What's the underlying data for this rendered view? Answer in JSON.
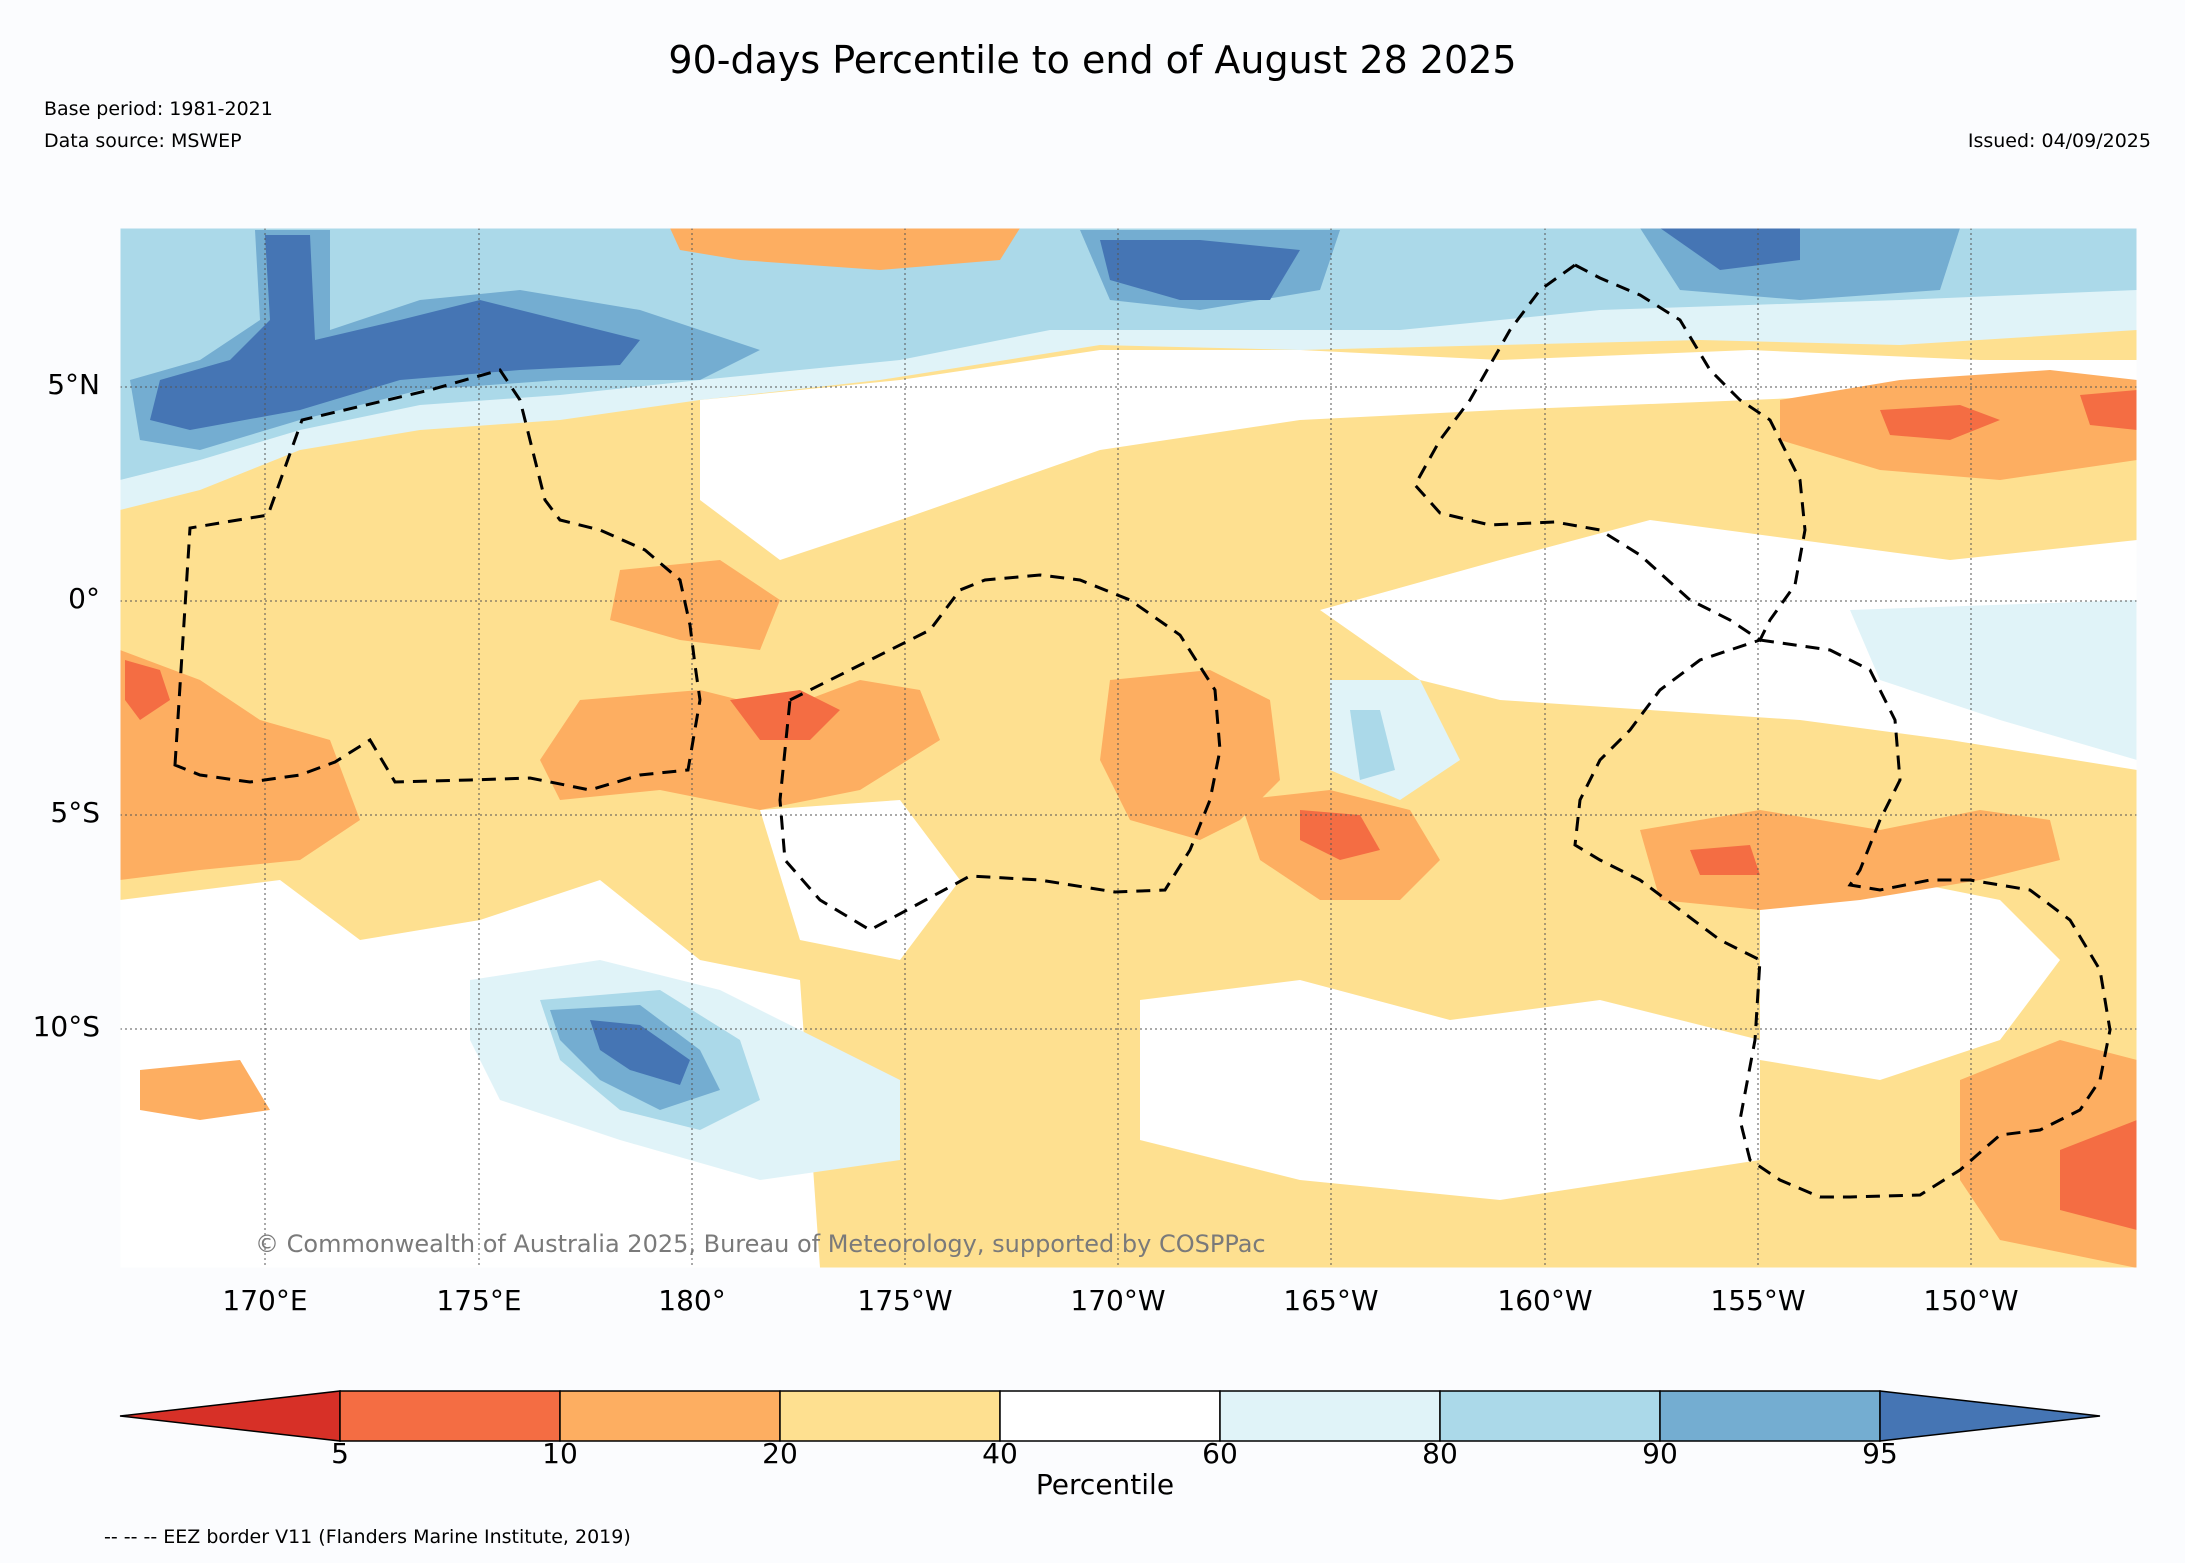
{
  "header": {
    "title": "90-days Percentile to end of August 28 2025",
    "base_period": "Base period: 1981-2021",
    "data_source": "Data source: MSWEP",
    "issued": "Issued: 04/09/2025"
  },
  "map": {
    "lat_labels": [
      "5°N",
      "0°",
      "5°S",
      "10°S"
    ],
    "lon_labels": [
      "170°E",
      "175°E",
      "180°",
      "175°W",
      "170°W",
      "165°W",
      "160°W",
      "155°W",
      "150°W"
    ],
    "copyright": "© Commonwealth of Australia 2025, Bureau of Meteorology, supported by COSPPac",
    "eez_style": "dashed black"
  },
  "colorbar": {
    "label": "Percentile",
    "ticks": [
      "5",
      "10",
      "20",
      "40",
      "60",
      "80",
      "90",
      "95"
    ],
    "colors": [
      "#d73027",
      "#f46d43",
      "#fdae61",
      "#fee090",
      "#ffffff",
      "#e0f3f8",
      "#abd9e9",
      "#74add1",
      "#4575b4"
    ],
    "extend": "both"
  },
  "footer": {
    "eez_note": "-- -- -- EEZ border V11 (Flanders Marine Institute, 2019)"
  }
}
